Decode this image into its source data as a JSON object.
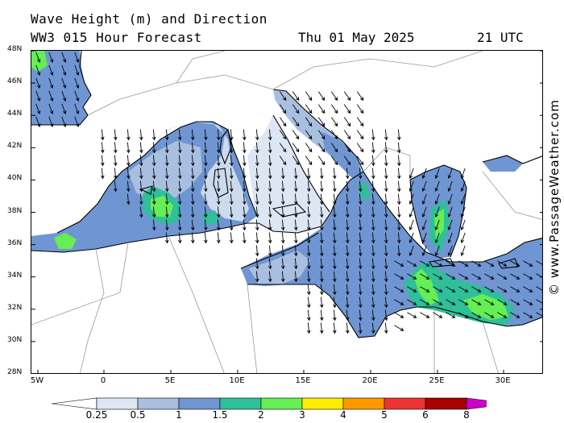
{
  "header": {
    "line1": "Wave Height (m) and Direction",
    "line2": "WW3 015 Hour Forecast",
    "date": "Thu 01 May 2025",
    "time": "21 UTC"
  },
  "credit": "© www.PassageWeather.com",
  "lat_labels": [
    "48N",
    "46N",
    "44N",
    "42N",
    "40N",
    "38N",
    "36N",
    "34N",
    "32N",
    "30N",
    "28N"
  ],
  "lon_labels": [
    "5W",
    "0",
    "5E",
    "10E",
    "15E",
    "20E",
    "25E",
    "30E"
  ],
  "legend": {
    "labels": [
      "0.25",
      "0.5",
      "1",
      "1.5",
      "2",
      "3",
      "4",
      "5",
      "6",
      "8"
    ],
    "colors": [
      "#ffffff",
      "#dde6f3",
      "#a9bfe0",
      "#6f96d2",
      "#2fbf9a",
      "#66ee55",
      "#ffee00",
      "#ff9900",
      "#ee3333",
      "#aa0000",
      "#cc00cc"
    ]
  },
  "map_colors": {
    "land": "#ffffff",
    "sea_calm": "#dde6f3",
    "sea_light": "#a9bfe0",
    "sea_mod": "#6f96d2",
    "sea_teal": "#2fbf9a",
    "sea_green": "#66ee55"
  }
}
